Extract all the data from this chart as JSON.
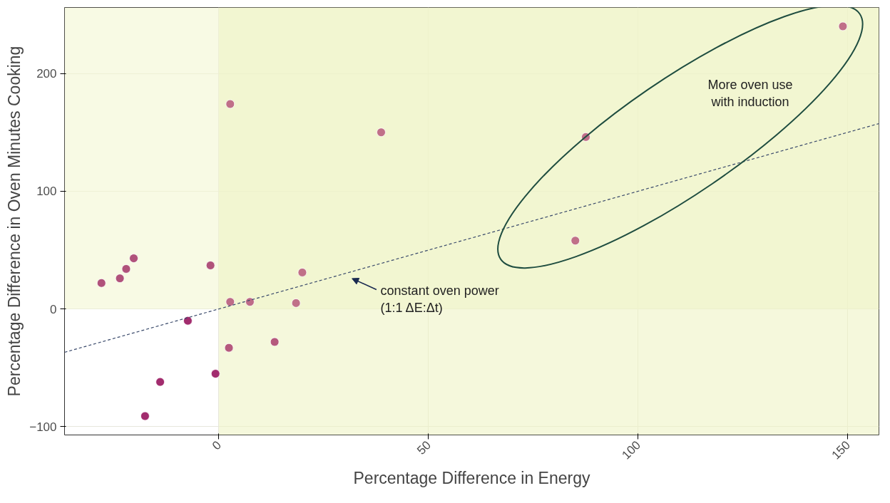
{
  "chart_data": {
    "type": "scatter",
    "xlabel": "Percentage Difference in Energy",
    "ylabel": "Percentage Difference in Oven Minutes Cooking",
    "xlim": [
      -36.8,
      157.4
    ],
    "ylim": [
      -107,
      256
    ],
    "xticks": [
      0,
      50,
      100,
      150
    ],
    "yticks": [
      -100,
      0,
      100,
      200
    ],
    "grid": true,
    "series": [
      {
        "marker": "circle",
        "x": [
          -28.0,
          -23.6,
          -22.1,
          -20.3,
          -2.0,
          -7.4,
          -14.0,
          -17.6,
          -0.8,
          2.7,
          7.4,
          2.4,
          13.3,
          19.9,
          18.4,
          2.7,
          38.7,
          87.5,
          85.0,
          148.8
        ],
        "values": [
          22,
          26,
          34,
          43,
          37,
          -10,
          -62,
          -91,
          -55,
          6,
          6,
          -33,
          -28,
          31,
          5,
          174,
          150,
          146,
          58,
          240
        ],
        "colors": [
          "#b0527a",
          "#b0527a",
          "#b0527a",
          "#b0527a",
          "#b0527a",
          "#a22c6e",
          "#a22c6e",
          "#a22c6e",
          "#a22c6e",
          "#be6c87",
          "#be6c87",
          "#b5597d",
          "#b5597d",
          "#c07088",
          "#c07088",
          "#c07088",
          "#c07088",
          "#c07088",
          "#c07088",
          "#c07088"
        ]
      },
      {
        "type": "line",
        "x": [
          -36.8,
          157.4
        ],
        "values": [
          -36.8,
          157.4
        ],
        "color": "#3a4a6b",
        "line_style": "dashed",
        "marker": "none"
      }
    ],
    "bands": [
      {
        "axis": "y",
        "from": 0,
        "to": 256,
        "color": "#f3f6d2"
      },
      {
        "axis": "x",
        "from": 0,
        "to": 157.4,
        "color": "#eef3c4"
      }
    ],
    "annotations": [
      "constant oven power\n(1:1 ΔE:Δt)",
      "More oven use\nwith induction"
    ]
  }
}
